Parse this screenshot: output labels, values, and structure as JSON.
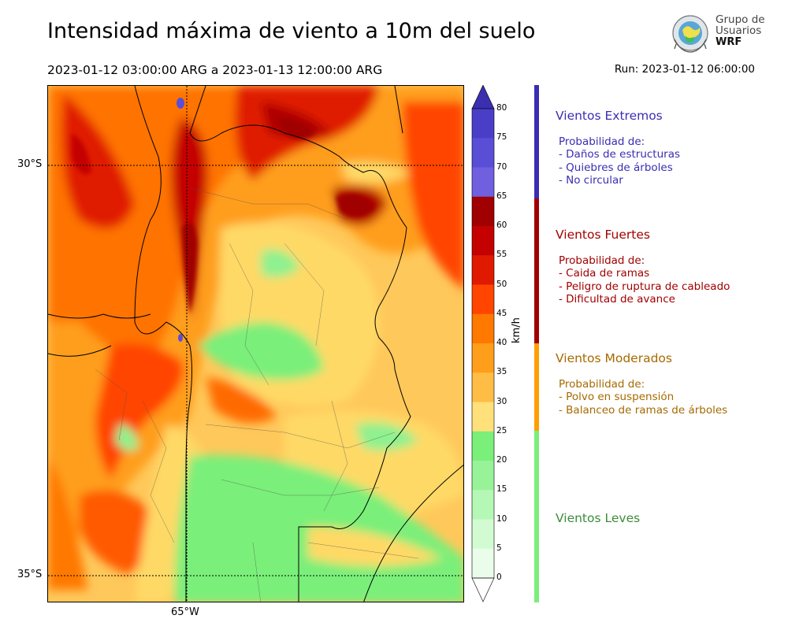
{
  "header": {
    "title": "Intensidad máxima de viento a 10m del suelo",
    "period": "2023-01-12 03:00:00 ARG  a  2023-01-13 12:00:00 ARG",
    "run": "Run: 2023-01-12 06:00:00"
  },
  "logo": {
    "line1": "Grupo de",
    "line2": "Usuarios",
    "line3": "WRF",
    "icon": "wrf-globe-icon"
  },
  "map": {
    "lat_labels": [
      "30°S",
      "35°S"
    ],
    "lon_labels": [
      "65°W"
    ]
  },
  "colorbar": {
    "unit": "km/h",
    "ticks": [
      "80",
      "75",
      "70",
      "65",
      "60",
      "55",
      "50",
      "45",
      "40",
      "35",
      "30",
      "25",
      "20",
      "15",
      "10",
      "5",
      "0"
    ],
    "colors": [
      "#3b2fb0",
      "#4a3ec8",
      "#5a4ed6",
      "#7060e0",
      "#a00000",
      "#c40000",
      "#e01a00",
      "#ff4500",
      "#ff7800",
      "#ff9e1a",
      "#ffbd45",
      "#ffe07a",
      "#7aef7a",
      "#98f398",
      "#b5f7b5",
      "#d2fbd2",
      "#eafdea"
    ]
  },
  "categories": [
    {
      "title": "Vientos Extremos",
      "color": "#3a2db4",
      "lines": [
        "Probabilidad de:",
        "- Daños de estructuras",
        "- Quiebres de árboles",
        "- No circular"
      ]
    },
    {
      "title": "Vientos Fuertes",
      "color": "#a10000",
      "lines": [
        "Probabilidad de:",
        "- Caida de ramas",
        "- Peligro de ruptura de cableado",
        "- Dificultad de avance"
      ]
    },
    {
      "title": "Vientos Moderados",
      "color": "#a66a00",
      "lines": [
        "Probabilidad de:",
        "- Polvo en suspensión",
        "- Balanceo de ramas de árboles"
      ]
    },
    {
      "title": "Vientos Leves",
      "color": "#3c8c3c",
      "lines": []
    }
  ],
  "category_bar_colors": [
    "#3a2db4",
    "#a10000",
    "#ff9e00",
    "#7aef7a"
  ]
}
